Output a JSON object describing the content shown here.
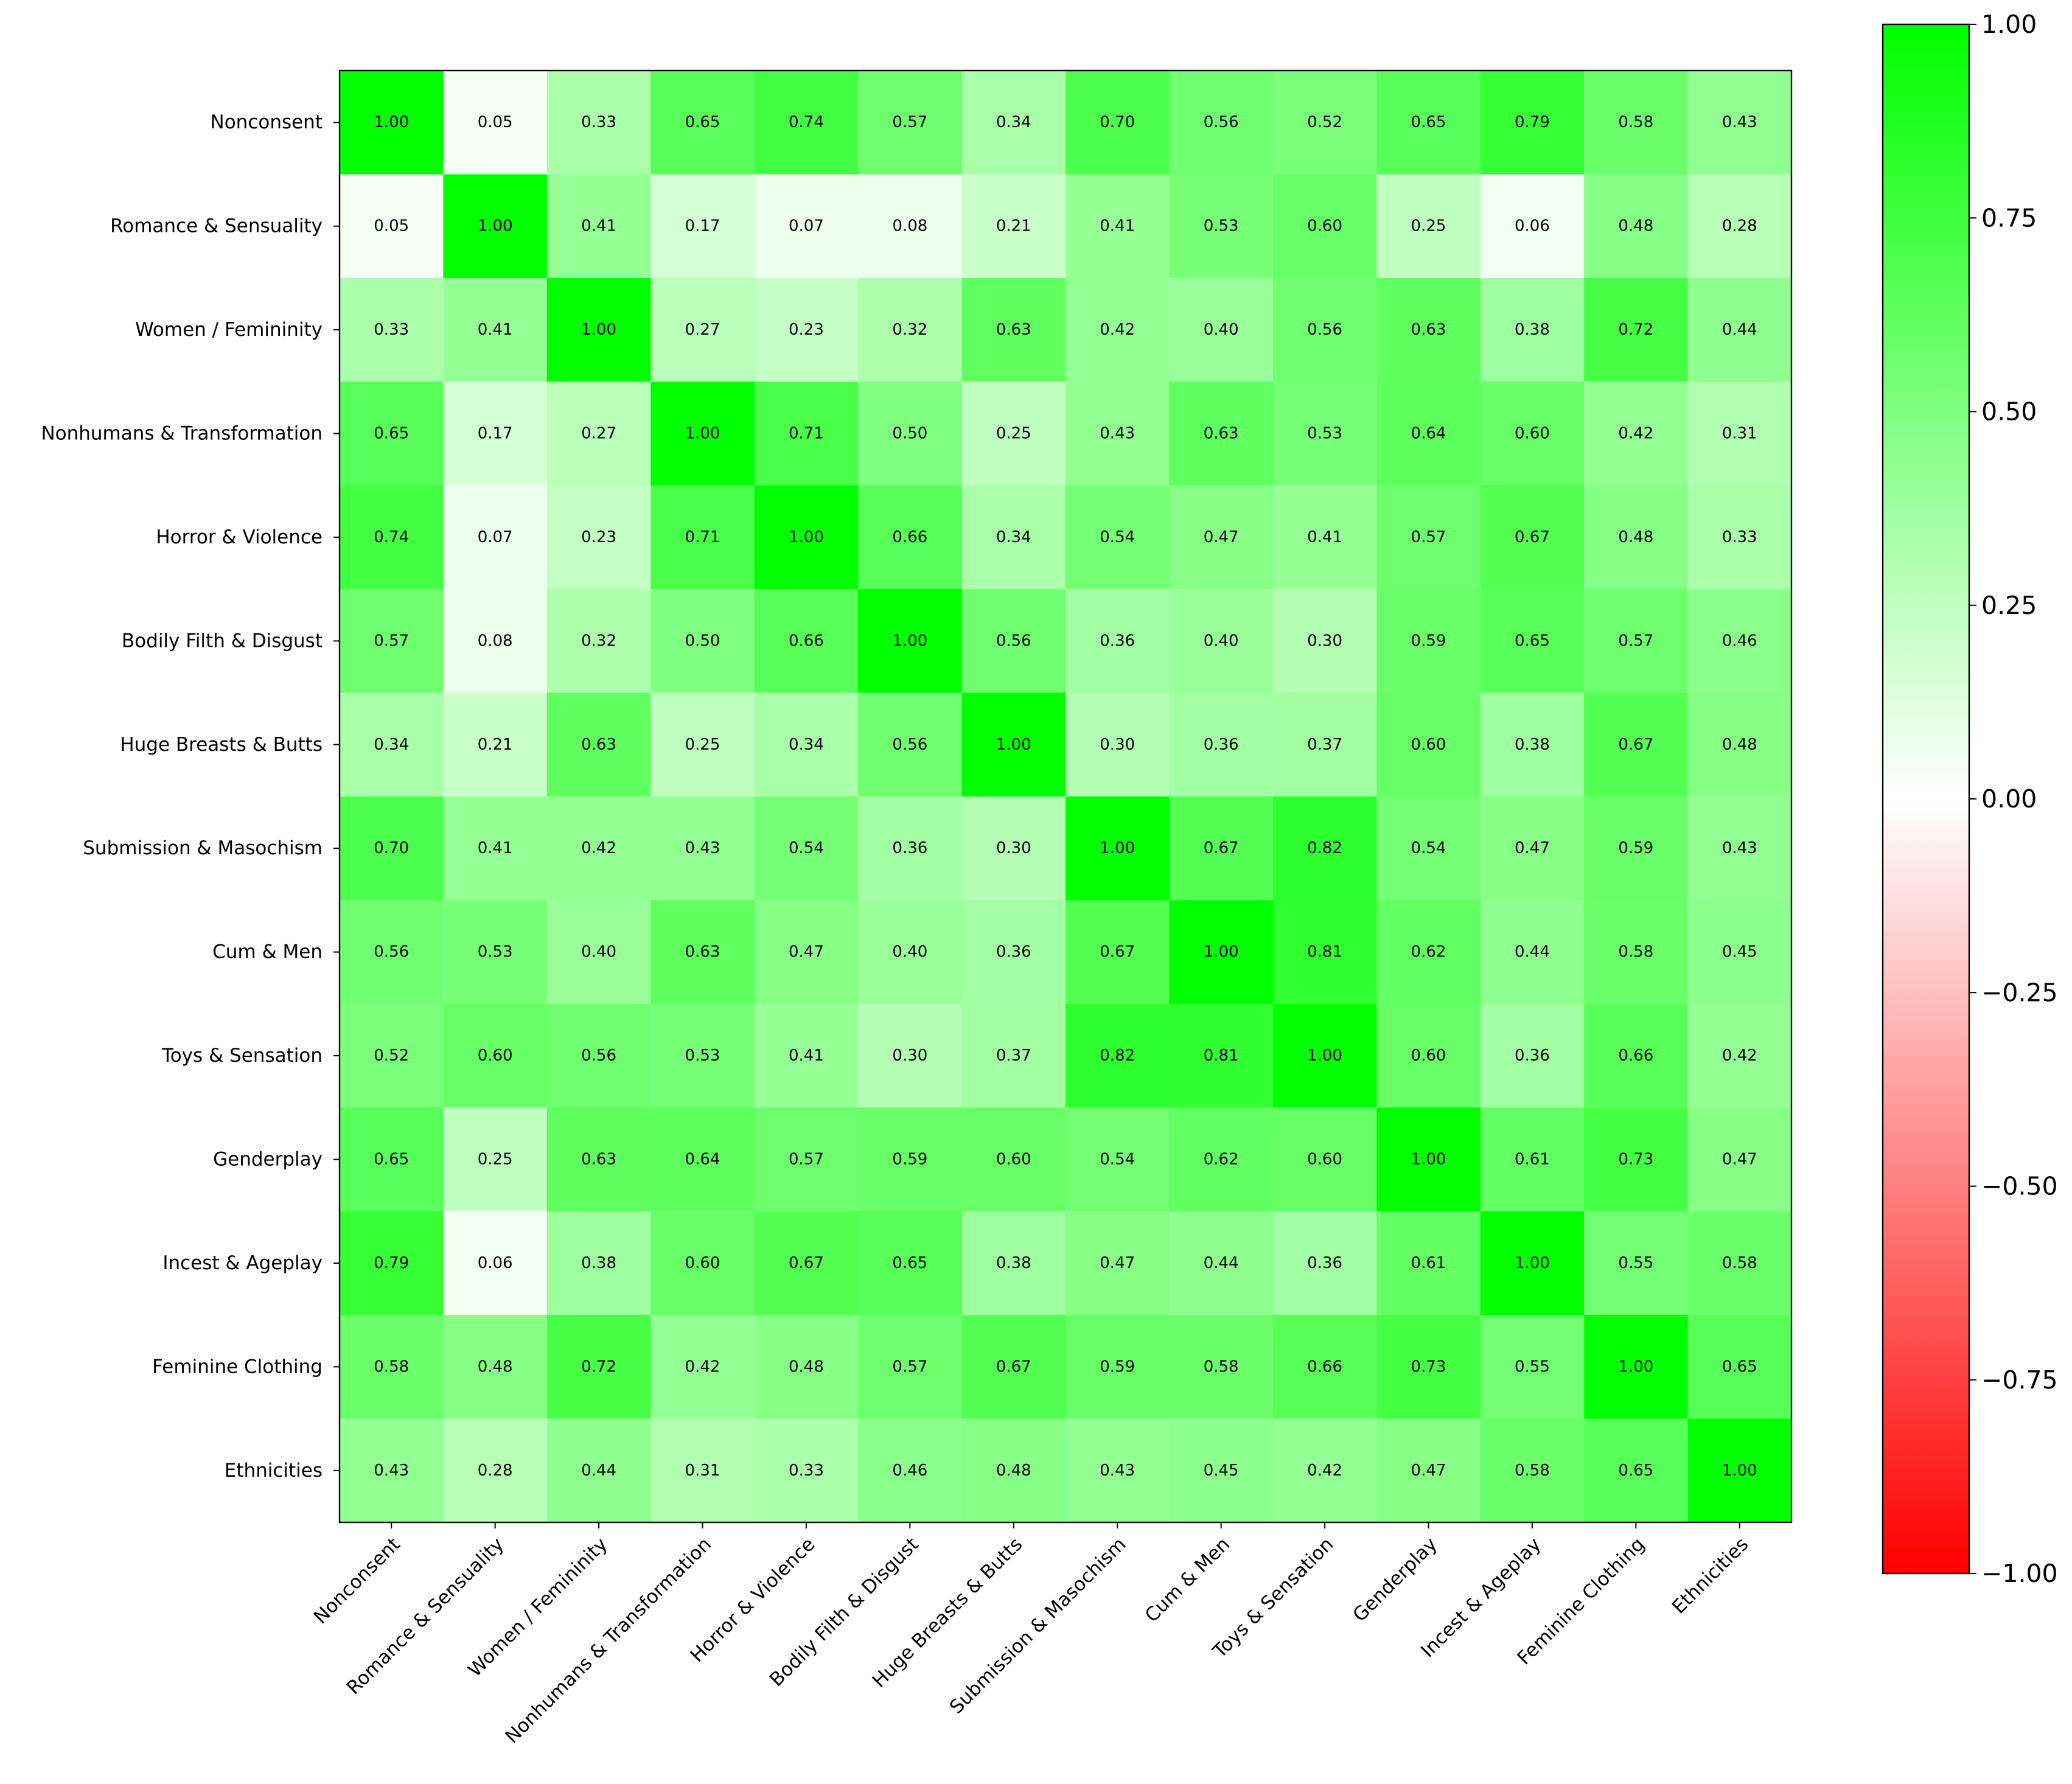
{
  "chart_data": {
    "type": "heatmap",
    "title": "",
    "xlabel": "",
    "ylabel": "",
    "categories": [
      "Nonconsent",
      "Romance & Sensuality",
      "Women / Femininity",
      "Nonhumans & Transformation",
      "Horror & Violence",
      "Bodily Filth & Disgust",
      "Huge Breasts & Butts",
      "Submission & Masochism",
      "Cum & Men",
      "Toys & Sensation",
      "Genderplay",
      "Incest & Ageplay",
      "Feminine Clothing",
      "Ethnicities"
    ],
    "matrix": [
      [
        1.0,
        0.05,
        0.33,
        0.65,
        0.74,
        0.57,
        0.34,
        0.7,
        0.56,
        0.52,
        0.65,
        0.79,
        0.58,
        0.43
      ],
      [
        0.05,
        1.0,
        0.41,
        0.17,
        0.07,
        0.08,
        0.21,
        0.41,
        0.53,
        0.6,
        0.25,
        0.06,
        0.48,
        0.28
      ],
      [
        0.33,
        0.41,
        1.0,
        0.27,
        0.23,
        0.32,
        0.63,
        0.42,
        0.4,
        0.56,
        0.63,
        0.38,
        0.72,
        0.44
      ],
      [
        0.65,
        0.17,
        0.27,
        1.0,
        0.71,
        0.5,
        0.25,
        0.43,
        0.63,
        0.53,
        0.64,
        0.6,
        0.42,
        0.31
      ],
      [
        0.74,
        0.07,
        0.23,
        0.71,
        1.0,
        0.66,
        0.34,
        0.54,
        0.47,
        0.41,
        0.57,
        0.67,
        0.48,
        0.33
      ],
      [
        0.57,
        0.08,
        0.32,
        0.5,
        0.66,
        1.0,
        0.56,
        0.36,
        0.4,
        0.3,
        0.59,
        0.65,
        0.57,
        0.46
      ],
      [
        0.34,
        0.21,
        0.63,
        0.25,
        0.34,
        0.56,
        1.0,
        0.3,
        0.36,
        0.37,
        0.6,
        0.38,
        0.67,
        0.48
      ],
      [
        0.7,
        0.41,
        0.42,
        0.43,
        0.54,
        0.36,
        0.3,
        1.0,
        0.67,
        0.82,
        0.54,
        0.47,
        0.59,
        0.43
      ],
      [
        0.56,
        0.53,
        0.4,
        0.63,
        0.47,
        0.4,
        0.36,
        0.67,
        1.0,
        0.81,
        0.62,
        0.44,
        0.58,
        0.45
      ],
      [
        0.52,
        0.6,
        0.56,
        0.53,
        0.41,
        0.3,
        0.37,
        0.82,
        0.81,
        1.0,
        0.6,
        0.36,
        0.66,
        0.42
      ],
      [
        0.65,
        0.25,
        0.63,
        0.64,
        0.57,
        0.59,
        0.6,
        0.54,
        0.62,
        0.6,
        1.0,
        0.61,
        0.73,
        0.47
      ],
      [
        0.79,
        0.06,
        0.38,
        0.6,
        0.67,
        0.65,
        0.38,
        0.47,
        0.44,
        0.36,
        0.61,
        1.0,
        0.55,
        0.58
      ],
      [
        0.58,
        0.48,
        0.72,
        0.42,
        0.48,
        0.57,
        0.67,
        0.59,
        0.58,
        0.66,
        0.73,
        0.55,
        1.0,
        0.65
      ],
      [
        0.43,
        0.28,
        0.44,
        0.31,
        0.33,
        0.46,
        0.48,
        0.43,
        0.45,
        0.42,
        0.47,
        0.58,
        0.65,
        1.0
      ]
    ],
    "value_format": "0.00",
    "colorbar": {
      "range": [
        -1.0,
        1.0
      ],
      "ticks": [
        -1.0,
        -0.75,
        -0.5,
        -0.25,
        0.0,
        0.25,
        0.5,
        0.75,
        1.0
      ],
      "tick_labels": [
        "−1.00",
        "−0.75",
        "−0.50",
        "−0.25",
        "0.00",
        "0.25",
        "0.50",
        "0.75",
        "1.00"
      ],
      "colors": [
        "#ff0000",
        "#ffffff",
        "#00ff00"
      ]
    },
    "grid": false,
    "legend": "colorbar-right"
  }
}
